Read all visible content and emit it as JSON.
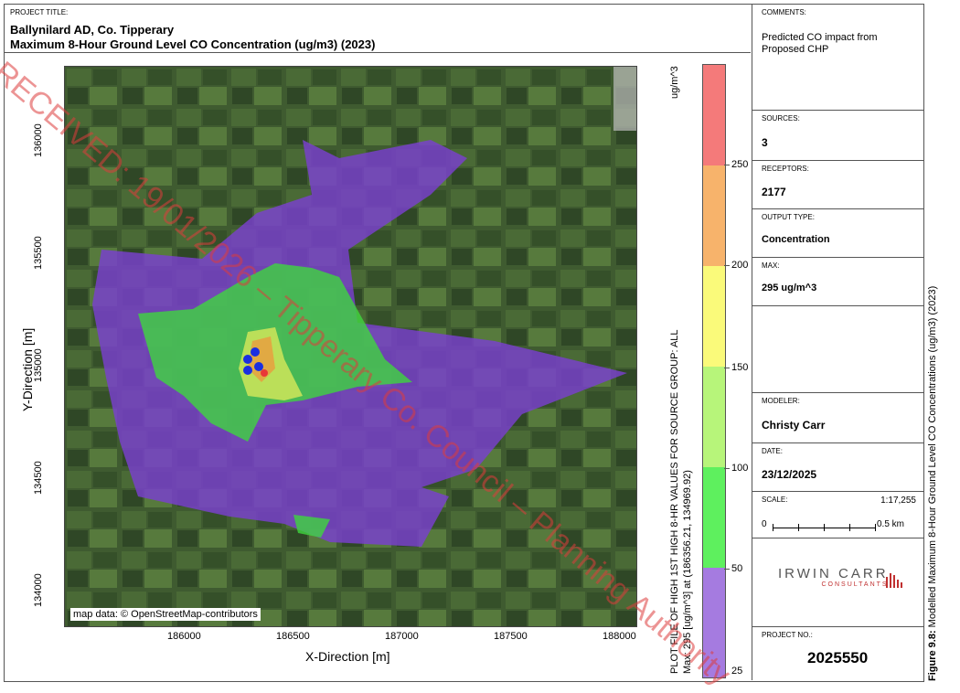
{
  "project": {
    "label": "PROJECT TITLE:",
    "title": "Ballynilard AD, Co. Tipperary",
    "subtitle": "Maximum 8-Hour Ground Level CO Concentration  (ug/m3) (2023)"
  },
  "info": {
    "comments_label": "COMMENTS:",
    "comments_text": "Predicted CO impact from Proposed CHP",
    "sources_label": "SOURCES:",
    "sources_value": "3",
    "receptors_label": "RECEPTORS:",
    "receptors_value": "2177",
    "output_label": "OUTPUT TYPE:",
    "output_value": "Concentration",
    "max_label": "MAX:",
    "max_value": "295 ug/m^3",
    "modeler_label": "MODELER:",
    "modeler_value": "Christy Carr",
    "date_label": "DATE:",
    "date_value": "23/12/2025",
    "scale_label": "SCALE:",
    "scale_ratio": "1:17,255",
    "scale_start": "0",
    "scale_end": "0.5 km",
    "company_name": "IRWIN CARR",
    "company_sub": "CONSULTANTS",
    "project_no_label": "PROJECT NO.:",
    "project_no_value": "2025550"
  },
  "map": {
    "attribution": "map data: © OpenStreetMap-contributors",
    "xlabel": "X-Direction [m]",
    "ylabel": "Y-Direction [m]",
    "xticks": [
      "186000",
      "186500",
      "187000",
      "187500",
      "188000"
    ],
    "yticks": [
      "136000",
      "135500",
      "135000",
      "134500",
      "134000"
    ],
    "plot_info_1": "PLOT FILE OF HIGH 1ST HIGH 8-HR VALUES FOR SOURCE GROUP: ALL",
    "plot_info_2": "Max:  295  [ug/m^3]  at  (186356.21, 134969.92)",
    "unit": "ug/m^3",
    "colorbar_ticks": [
      "250",
      "200",
      "150",
      "100",
      "50",
      "25"
    ],
    "colorbar_colors": [
      "#f47a7a",
      "#f7b36b",
      "#fafa7a",
      "#b7f57a",
      "#5ef05e",
      "#a57be0"
    ],
    "plume_color": "#7a3fd0",
    "green_color": "#3ed63e",
    "watermark": "RECEIVED: 19/01/2026 – Tipperary Co. Council – Planning Authority"
  },
  "caption": {
    "bold": "Figure 9.8:",
    "text": " Modelled Maximum 8-Hour Ground Level CO Concentrations (ug/m3) (2023)"
  }
}
